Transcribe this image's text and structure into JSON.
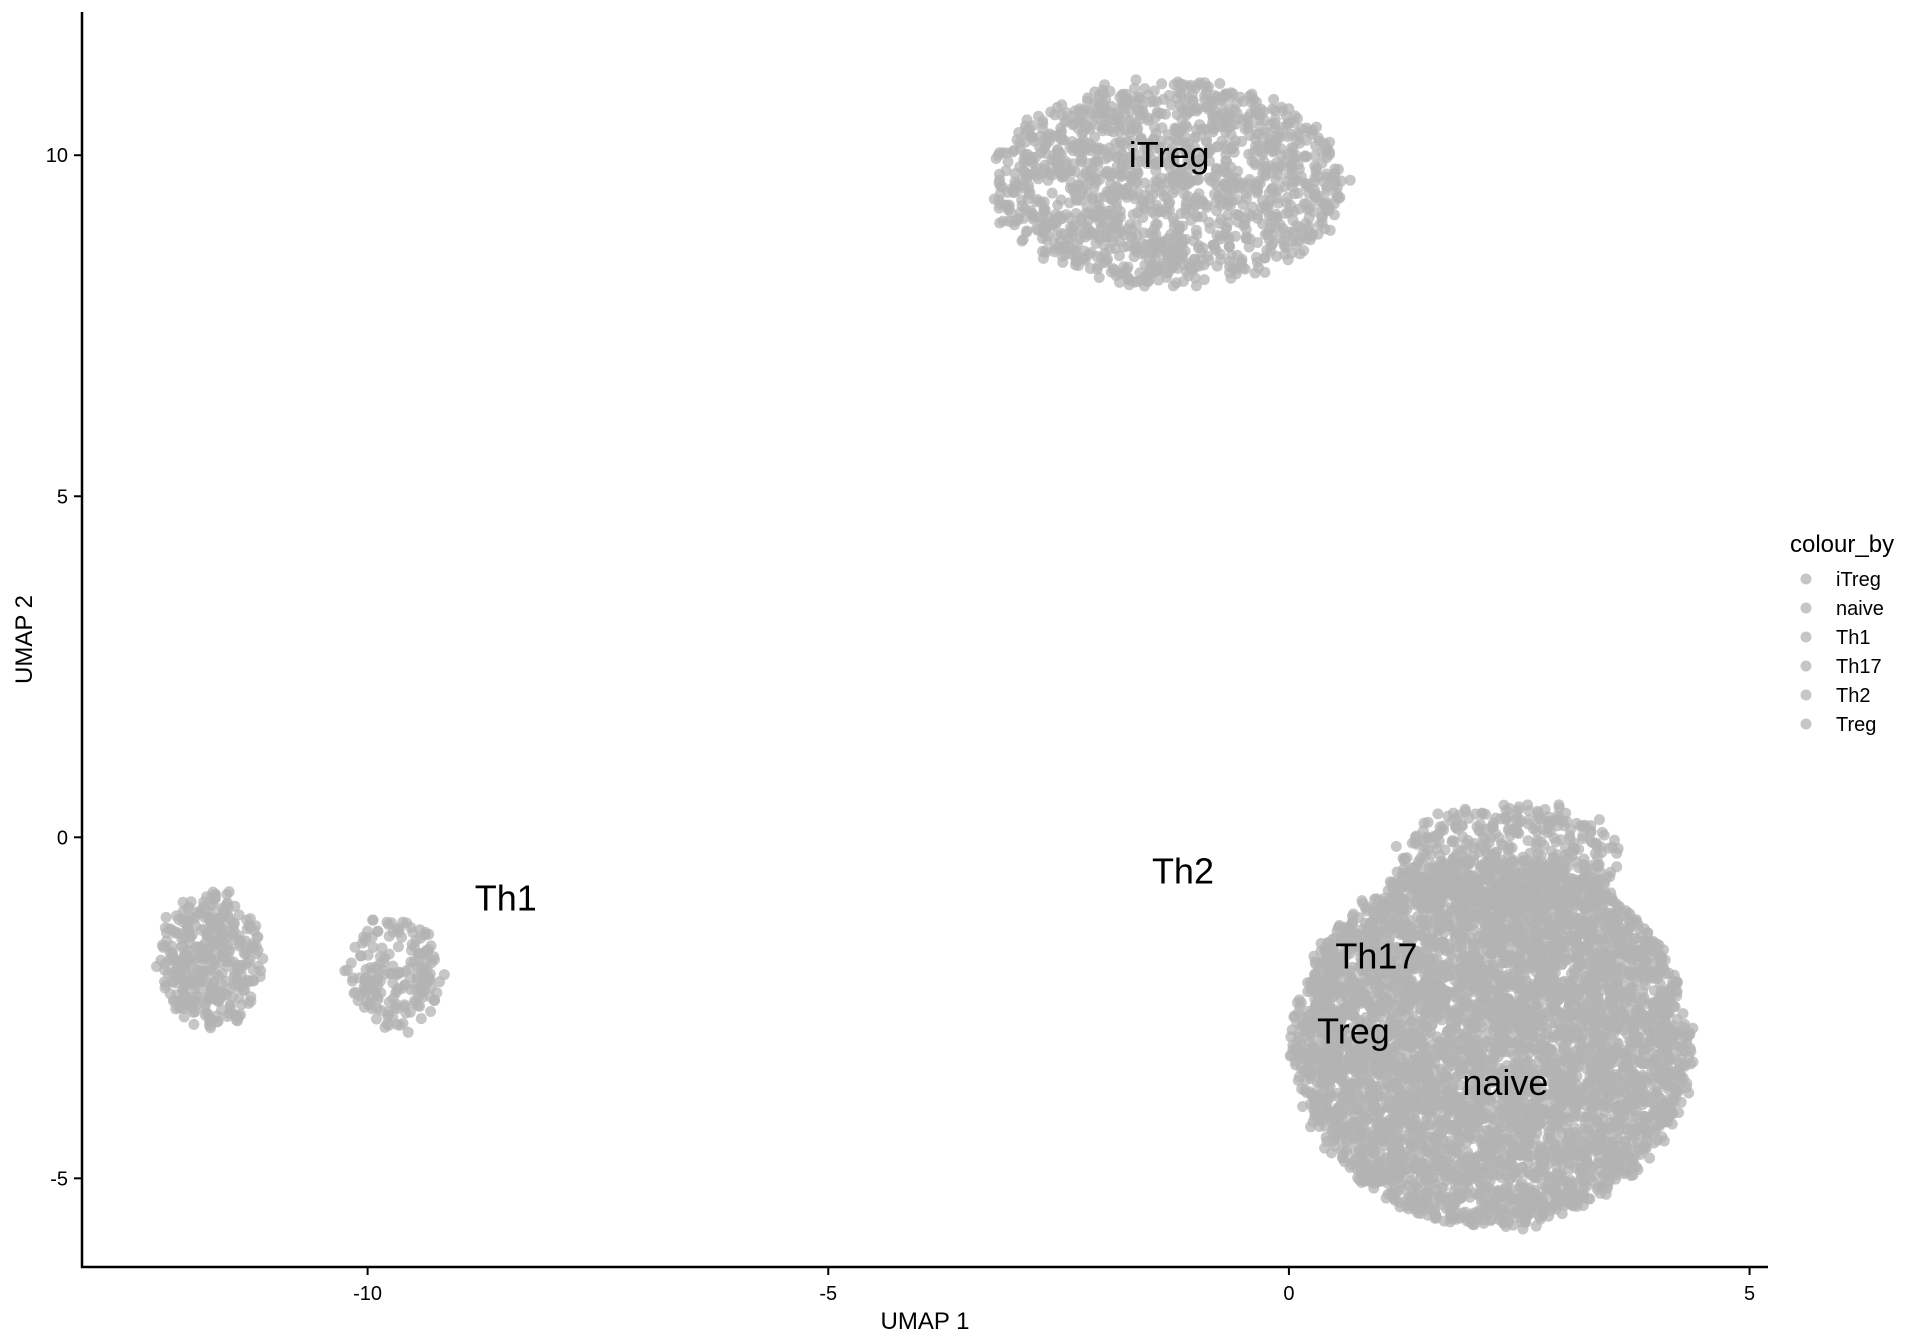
{
  "chart_data": {
    "type": "scatter",
    "title": "",
    "xlabel": "UMAP 1",
    "ylabel": "UMAP 2",
    "xlim": [
      -13.1,
      5.2
    ],
    "ylim": [
      -6.3,
      12.1
    ],
    "x_ticks": [
      -10,
      -5,
      0,
      5
    ],
    "x_tick_labels": [
      "-10",
      "-5",
      "0",
      "5"
    ],
    "y_ticks": [
      -5,
      0,
      5,
      10
    ],
    "y_tick_labels": [
      "-5",
      "0",
      "5",
      "10"
    ],
    "grid": false,
    "point_color": "#b3b3b3",
    "legend": {
      "title": "colour_by",
      "placement": "right",
      "entries": [
        "iTreg",
        "naive",
        "Th1",
        "Th17",
        "Th2",
        "Treg"
      ]
    },
    "cluster_labels": [
      {
        "text": "iTreg",
        "x": -1.3,
        "y": 10.0
      },
      {
        "text": "Th1",
        "x": -8.5,
        "y": -0.9
      },
      {
        "text": "Th2",
        "x": -1.15,
        "y": -0.5
      },
      {
        "text": "Th17",
        "x": 0.95,
        "y": -1.75
      },
      {
        "text": "Treg",
        "x": 0.7,
        "y": -2.85
      },
      {
        "text": "naive",
        "x": 2.35,
        "y": -3.6
      }
    ],
    "clusters": [
      {
        "name": "iTreg",
        "cx": -1.3,
        "cy": 9.6,
        "rx": 1.9,
        "ry": 1.5,
        "n": 1400
      },
      {
        "name": "Th1",
        "cx": -11.7,
        "cy": -1.8,
        "rx": 0.55,
        "ry": 1.0,
        "n": 380
      },
      {
        "name": "Th1",
        "cx": -9.7,
        "cy": -2.0,
        "rx": 0.5,
        "ry": 0.8,
        "n": 180
      },
      {
        "name": "naive",
        "cx": 2.2,
        "cy": -3.0,
        "rx": 2.15,
        "ry": 2.7,
        "n": 5200
      },
      {
        "name": "naive",
        "cx": 2.4,
        "cy": -0.3,
        "rx": 1.2,
        "ry": 0.8,
        "n": 450
      }
    ]
  }
}
